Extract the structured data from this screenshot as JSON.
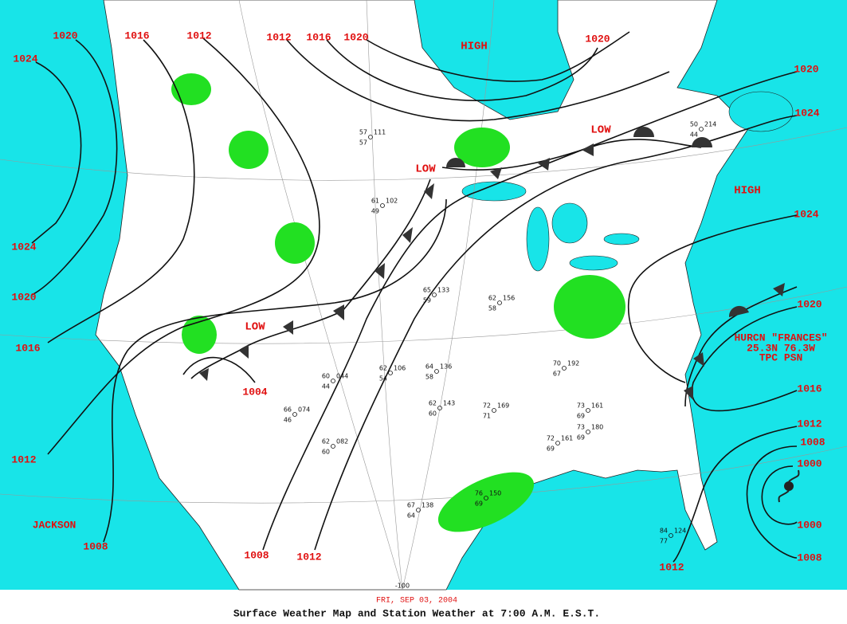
{
  "isobar_labels": [
    "1020",
    "1016",
    "1012",
    "1012",
    "1016",
    "1020",
    "1020",
    "1024",
    "1020",
    "1024",
    "1024",
    "1020",
    "1016",
    "1012",
    "1008",
    "1004",
    "1008",
    "1012",
    "1024",
    "1020",
    "1016",
    "1012",
    "1008",
    "1000",
    "1000",
    "1008",
    "1012"
  ],
  "pressure_centers": [
    "HIGH",
    "HIGH",
    "LOW",
    "LOW",
    "LOW"
  ],
  "hurricane": [
    "HURCN \"FRANCES\"",
    "25.3N 76.3W",
    "TPC PSN"
  ],
  "place_label": "JACKSON",
  "grid_label": "-100",
  "stations": [
    {
      "temp": 57,
      "dew": 57,
      "pressure": "111"
    },
    {
      "temp": 61,
      "dew": 49,
      "pressure": "102"
    },
    {
      "temp": 65,
      "dew": 59,
      "pressure": "133"
    },
    {
      "temp": 62,
      "dew": 58,
      "pressure": "156"
    },
    {
      "temp": 62,
      "dew": 54,
      "pressure": "106"
    },
    {
      "temp": 64,
      "dew": 58,
      "pressure": "136"
    },
    {
      "temp": 62,
      "dew": 60,
      "pressure": "143"
    },
    {
      "temp": 72,
      "dew": 71,
      "pressure": "169"
    },
    {
      "temp": 60,
      "dew": 44,
      "pressure": "044"
    },
    {
      "temp": 62,
      "dew": 60,
      "pressure": "082"
    },
    {
      "temp": 70,
      "dew": 67,
      "pressure": "192"
    },
    {
      "temp": 73,
      "dew": 69,
      "pressure": "161"
    },
    {
      "temp": 73,
      "dew": 69,
      "pressure": "180"
    },
    {
      "temp": 67,
      "dew": 64,
      "pressure": "138"
    },
    {
      "temp": 76,
      "dew": 69,
      "pressure": "150"
    },
    {
      "temp": 84,
      "dew": 77,
      "pressure": "124"
    },
    {
      "temp": 66,
      "dew": 46,
      "pressure": "074"
    },
    {
      "temp": 50,
      "dew": 44,
      "pressure": "214"
    },
    {
      "temp": 72,
      "dew": 69,
      "pressure": "161"
    }
  ],
  "footer": {
    "date": "FRI, SEP 03, 2004",
    "title": "Surface Weather Map and Station Weather at 7:00 A.M. E.S.T."
  }
}
